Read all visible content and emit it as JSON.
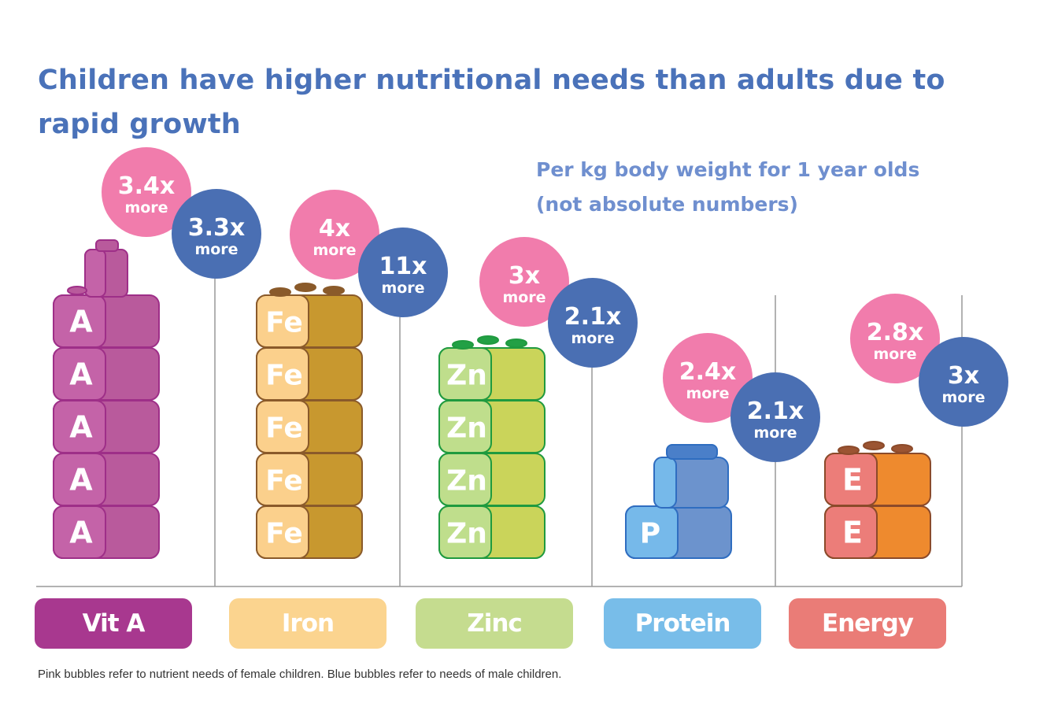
{
  "title": "Children have higher nutritional needs than adults due to rapid growth",
  "subtitle_line1": "Per kg body weight for 1 year olds",
  "subtitle_line2": "(not absolute numbers)",
  "footnote": "Pink bubbles refer to nutrient needs of female children. Blue bubbles refer to needs of male children.",
  "colors": {
    "female_bubble": "#f17cac",
    "male_bubble": "#4a6fb3",
    "axis_line": "#999999"
  },
  "chart_data": {
    "type": "bar",
    "title": "Children have higher nutritional needs than adults due to rapid growth",
    "subtitle": "Per kg body weight for 1 year olds (not absolute numbers)",
    "categories": [
      "Vit A",
      "Iron",
      "Zinc",
      "Protein",
      "Energy"
    ],
    "series": [
      {
        "values": [
          3.4,
          4,
          3,
          2.4,
          2.8
        ],
        "color": "#f17cac"
      },
      {
        "values": [
          3.3,
          11,
          2.1,
          2.1,
          3
        ],
        "color": "#4a6fb3"
      }
    ],
    "bubble_text": {
      "female": [
        "3.4x",
        "4x",
        "3x",
        "2.4x",
        "2.8x"
      ],
      "male": [
        "3.3x",
        "11x",
        "2.1x",
        "2.1x",
        "3x"
      ],
      "unit": "more"
    },
    "block_counts": [
      5,
      5,
      4,
      1,
      2
    ],
    "block_letters": [
      "A",
      "Fe",
      "Zn",
      "P",
      "E"
    ],
    "category_colors": [
      "#a8388f",
      "#fbd48f",
      "#c5dc8f",
      "#78bde9",
      "#ea7c77"
    ],
    "block_colors": [
      {
        "front": "#c463a8",
        "side": "#b95a9c",
        "stroke": "#9e2f88"
      },
      {
        "front": "#fbd08c",
        "side": "#c8982f",
        "stroke": "#8a5a2a"
      },
      {
        "front": "#bfde8c",
        "side": "#cad45a",
        "stroke": "#1f9a3f"
      },
      {
        "front": "#76b9ea",
        "side": "#6c93cd",
        "stroke": "#2f6dc0"
      },
      {
        "front": "#ec7d79",
        "side": "#ee8a2e",
        "stroke": "#8b4a2a"
      }
    ],
    "stud_colors": [
      "#b95a9c",
      "#8a5a2a",
      "#22a045",
      "#4a7fc9",
      "#9b5432"
    ],
    "legend": "none",
    "grid": false
  }
}
